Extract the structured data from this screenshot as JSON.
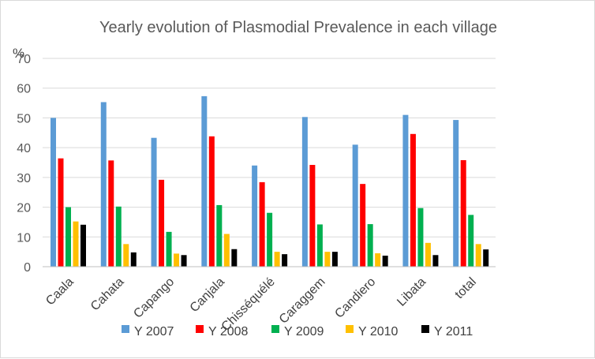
{
  "chart_data": {
    "type": "bar",
    "title": "Yearly evolution of Plasmodial Prevalence in each village",
    "ylabel": "%",
    "xlabel": "",
    "ylim": [
      0,
      70
    ],
    "yticks": [
      0,
      10,
      20,
      30,
      40,
      50,
      60,
      70
    ],
    "grid": true,
    "legend_position": "bottom",
    "categories": [
      "Caala",
      "Cahata",
      "Capango",
      "Canjala",
      "Chisséquélé",
      "Caraggem",
      "Candiero",
      "Libata",
      "total"
    ],
    "series": [
      {
        "name": "Y 2007",
        "color": "#5b9bd5",
        "values": [
          50,
          55.3,
          43.3,
          57.3,
          34,
          50.3,
          41,
          51,
          49.3
        ]
      },
      {
        "name": "Y 2008",
        "color": "#ff0000",
        "values": [
          36.4,
          35.7,
          29.2,
          43.8,
          28.4,
          34.2,
          27.8,
          44.6,
          35.8
        ]
      },
      {
        "name": "Y 2009",
        "color": "#00b050",
        "values": [
          20,
          20.2,
          11.7,
          20.7,
          18.1,
          14.2,
          14.3,
          19.7,
          17.4
        ]
      },
      {
        "name": "Y 2010",
        "color": "#ffc000",
        "values": [
          15.2,
          7.6,
          4.4,
          11,
          5,
          5,
          4.5,
          8,
          7.6
        ]
      },
      {
        "name": "Y 2011",
        "color": "#000000",
        "values": [
          14.1,
          4.8,
          3.9,
          5.9,
          4.2,
          5,
          3.7,
          3.9,
          5.8
        ]
      }
    ]
  }
}
